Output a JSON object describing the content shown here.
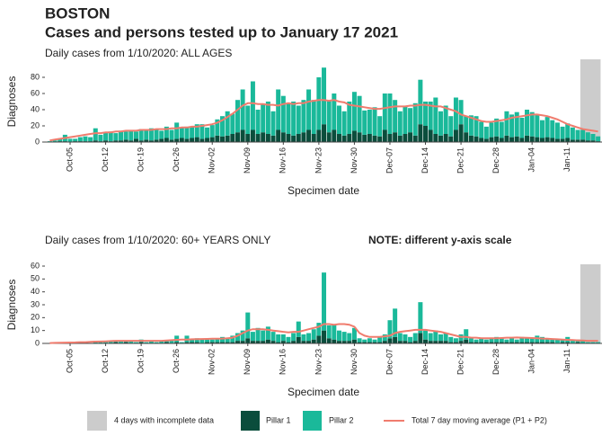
{
  "chart_data": [
    {
      "type": "bar",
      "stacked": true,
      "title": "BOSTON",
      "subtitle": "Cases and persons tested up to January 17 2021",
      "panel_title": "Daily cases from 1/10/2020: ALL AGES",
      "x_label": "Specimen date",
      "y_label": "Diagnoses",
      "shaded": {
        "label": "4 days with incomplete data",
        "days": 4,
        "color": "#cccccc"
      },
      "categories": [
        null,
        null,
        null,
        null,
        "Oct-05",
        null,
        null,
        null,
        null,
        null,
        null,
        "Oct-12",
        null,
        null,
        null,
        null,
        null,
        null,
        "Oct-19",
        null,
        null,
        null,
        null,
        null,
        null,
        "Oct-26",
        null,
        null,
        null,
        null,
        null,
        null,
        "Nov-02",
        null,
        null,
        null,
        null,
        null,
        null,
        "Nov-09",
        null,
        null,
        null,
        null,
        null,
        null,
        "Nov-16",
        null,
        null,
        null,
        null,
        null,
        null,
        "Nov-23",
        null,
        null,
        null,
        null,
        null,
        null,
        "Nov-30",
        null,
        null,
        null,
        null,
        null,
        null,
        "Dec-07",
        null,
        null,
        null,
        null,
        null,
        null,
        "Dec-14",
        null,
        null,
        null,
        null,
        null,
        null,
        "Dec-21",
        null,
        null,
        null,
        null,
        null,
        null,
        "Dec-28",
        null,
        null,
        null,
        null,
        null,
        null,
        "Jan-04",
        null,
        null,
        null,
        null,
        null,
        null,
        "Jan-11",
        null,
        null,
        null,
        null,
        null,
        null
      ],
      "ylim": [
        0,
        100
      ],
      "yticks": [
        0,
        20,
        40,
        60,
        80
      ],
      "series": [
        {
          "name": "Pillar 1",
          "color": "#0b4d3c",
          "values": [
            0,
            0,
            1,
            1,
            0,
            1,
            1,
            1,
            1,
            2,
            1,
            2,
            1,
            2,
            2,
            3,
            2,
            4,
            2,
            3,
            2,
            3,
            4,
            5,
            3,
            4,
            5,
            4,
            5,
            6,
            4,
            5,
            6,
            8,
            7,
            8,
            10,
            12,
            15,
            10,
            15,
            10,
            12,
            10,
            8,
            15,
            12,
            10,
            8,
            10,
            12,
            15,
            10,
            15,
            22,
            12,
            15,
            10,
            8,
            10,
            14,
            12,
            9,
            10,
            8,
            7,
            15,
            10,
            12,
            8,
            10,
            12,
            8,
            22,
            20,
            15,
            10,
            8,
            10,
            7,
            15,
            22,
            12,
            8,
            7,
            5,
            4,
            6,
            7,
            5,
            8,
            6,
            7,
            5,
            8,
            7,
            6,
            5,
            6,
            5,
            4,
            4,
            5,
            3,
            3,
            3,
            2,
            2,
            1
          ]
        },
        {
          "name": "Pillar 2",
          "color": "#1ab99a",
          "values": [
            1,
            2,
            3,
            8,
            4,
            3,
            5,
            6,
            5,
            15,
            8,
            10,
            12,
            9,
            12,
            10,
            13,
            9,
            14,
            11,
            15,
            12,
            10,
            14,
            12,
            20,
            13,
            15,
            14,
            16,
            18,
            13,
            15,
            20,
            25,
            30,
            25,
            40,
            50,
            35,
            60,
            30,
            35,
            40,
            30,
            50,
            45,
            38,
            42,
            35,
            40,
            50,
            42,
            65,
            70,
            40,
            45,
            35,
            30,
            40,
            48,
            45,
            30,
            30,
            35,
            25,
            45,
            50,
            40,
            30,
            35,
            30,
            40,
            55,
            30,
            35,
            45,
            30,
            35,
            25,
            40,
            30,
            20,
            25,
            25,
            20,
            15,
            18,
            22,
            20,
            30,
            28,
            30,
            25,
            32,
            30,
            28,
            22,
            25,
            22,
            20,
            15,
            18,
            15,
            12,
            12,
            10,
            8,
            6
          ]
        },
        {
          "name": "Total 7 day moving average (P1 + P2)",
          "type": "line",
          "color": "#f07c6e",
          "values": [
            2,
            3,
            4,
            5,
            6,
            7,
            8,
            9,
            10,
            11,
            11,
            12,
            12,
            13,
            13,
            14,
            14,
            14,
            15,
            15,
            15,
            16,
            16,
            16,
            17,
            17,
            18,
            18,
            19,
            19,
            20,
            21,
            22,
            24,
            27,
            31,
            35,
            40,
            45,
            48,
            48,
            47,
            47,
            46,
            46,
            45,
            47,
            48,
            47,
            48,
            48,
            50,
            51,
            52,
            52,
            51,
            52,
            50,
            49,
            46,
            45,
            44,
            43,
            42,
            41,
            41,
            42,
            43,
            44,
            44,
            44,
            45,
            45,
            46,
            46,
            45,
            44,
            44,
            42,
            40,
            38,
            34,
            32,
            30,
            28,
            26,
            25,
            25,
            26,
            27,
            28,
            30,
            31,
            32,
            33,
            34,
            34,
            33,
            32,
            30,
            28,
            25,
            22,
            20,
            18,
            16,
            15,
            14,
            13
          ]
        }
      ]
    },
    {
      "type": "bar",
      "stacked": true,
      "panel_title": "Daily cases from 1/10/2020: 60+ YEARS ONLY",
      "note": "NOTE: different y-axis scale",
      "x_label": "Specimen date",
      "y_label": "Diagnoses",
      "categories": [
        null,
        null,
        null,
        null,
        "Oct-05",
        null,
        null,
        null,
        null,
        null,
        null,
        "Oct-12",
        null,
        null,
        null,
        null,
        null,
        null,
        "Oct-19",
        null,
        null,
        null,
        null,
        null,
        null,
        "Oct-26",
        null,
        null,
        null,
        null,
        null,
        null,
        "Nov-02",
        null,
        null,
        null,
        null,
        null,
        null,
        "Nov-09",
        null,
        null,
        null,
        null,
        null,
        null,
        "Nov-16",
        null,
        null,
        null,
        null,
        null,
        null,
        "Nov-23",
        null,
        null,
        null,
        null,
        null,
        null,
        "Nov-30",
        null,
        null,
        null,
        null,
        null,
        null,
        "Dec-07",
        null,
        null,
        null,
        null,
        null,
        null,
        "Dec-14",
        null,
        null,
        null,
        null,
        null,
        null,
        "Dec-21",
        null,
        null,
        null,
        null,
        null,
        null,
        "Dec-28",
        null,
        null,
        null,
        null,
        null,
        null,
        "Jan-04",
        null,
        null,
        null,
        null,
        null,
        null,
        "Jan-11",
        null,
        null,
        null,
        null,
        null,
        null
      ],
      "ylim": [
        0,
        60
      ],
      "yticks": [
        0,
        10,
        20,
        30,
        40,
        50,
        60
      ],
      "series": [
        {
          "color": "#0b4d3c",
          "values": [
            0,
            0,
            0,
            0,
            0,
            0,
            0,
            0,
            0,
            0,
            0,
            0,
            0,
            1,
            0,
            1,
            0,
            0,
            1,
            0,
            0,
            0,
            0,
            1,
            0,
            1,
            0,
            1,
            1,
            1,
            0,
            1,
            1,
            1,
            1,
            1,
            1,
            2,
            2,
            4,
            2,
            2,
            2,
            3,
            2,
            1,
            2,
            1,
            2,
            5,
            2,
            2,
            3,
            6,
            10,
            4,
            3,
            2,
            2,
            2,
            3,
            1,
            1,
            1,
            1,
            1,
            2,
            4,
            5,
            2,
            2,
            1,
            2,
            8,
            3,
            2,
            2,
            2,
            2,
            1,
            1,
            2,
            3,
            1,
            1,
            1,
            1,
            1,
            1,
            1,
            1,
            1,
            1,
            1,
            1,
            1,
            1,
            1,
            1,
            1,
            0,
            1,
            1,
            0,
            1,
            0,
            0,
            0,
            0
          ]
        },
        {
          "color": "#1ab99a",
          "values": [
            0,
            0,
            0,
            1,
            0,
            0,
            1,
            1,
            0,
            2,
            1,
            1,
            2,
            1,
            2,
            1,
            2,
            1,
            2,
            1,
            2,
            1,
            2,
            1,
            2,
            5,
            1,
            5,
            2,
            3,
            3,
            2,
            2,
            3,
            4,
            3,
            5,
            6,
            8,
            20,
            7,
            10,
            8,
            10,
            7,
            6,
            5,
            4,
            6,
            12,
            5,
            6,
            8,
            10,
            45,
            10,
            12,
            8,
            7,
            6,
            9,
            3,
            2,
            3,
            2,
            4,
            5,
            14,
            22,
            6,
            5,
            4,
            6,
            24,
            7,
            6,
            8,
            5,
            6,
            4,
            3,
            5,
            8,
            3,
            2,
            3,
            2,
            3,
            4,
            3,
            2,
            3,
            2,
            4,
            3,
            3,
            5,
            4,
            3,
            2,
            3,
            2,
            4,
            2,
            2,
            2,
            1,
            1,
            1
          ]
        },
        {
          "type": "line",
          "color": "#f07c6e",
          "values": [
            0.3,
            0.4,
            0.5,
            0.6,
            0.7,
            0.8,
            1,
            1,
            1.2,
            1.4,
            1.5,
            1.6,
            1.8,
            2,
            2,
            2,
            2,
            2,
            2,
            2,
            2,
            2,
            2,
            2.2,
            2.5,
            2.8,
            3,
            3,
            3.2,
            3.3,
            3.4,
            3.5,
            3.6,
            3.7,
            3.8,
            4,
            4.5,
            6,
            8,
            10,
            11,
            11,
            11,
            10.5,
            10,
            9.5,
            9,
            8.5,
            9,
            9,
            10,
            11,
            12,
            13,
            15,
            15,
            14.5,
            15,
            15,
            14.5,
            13,
            8,
            6,
            5,
            5,
            5,
            5.5,
            6,
            8,
            9,
            9.5,
            10,
            10.5,
            10.5,
            10.5,
            10,
            9.5,
            9,
            8,
            7,
            6,
            5,
            5,
            4.5,
            4.5,
            4,
            4,
            4,
            4,
            4.2,
            4.5,
            4.5,
            4.6,
            4.5,
            4.4,
            4.2,
            4,
            3.8,
            3.6,
            3.4,
            3.2,
            3,
            2.8,
            2.6,
            2.4,
            2.2,
            2,
            2,
            2
          ]
        }
      ]
    }
  ]
}
